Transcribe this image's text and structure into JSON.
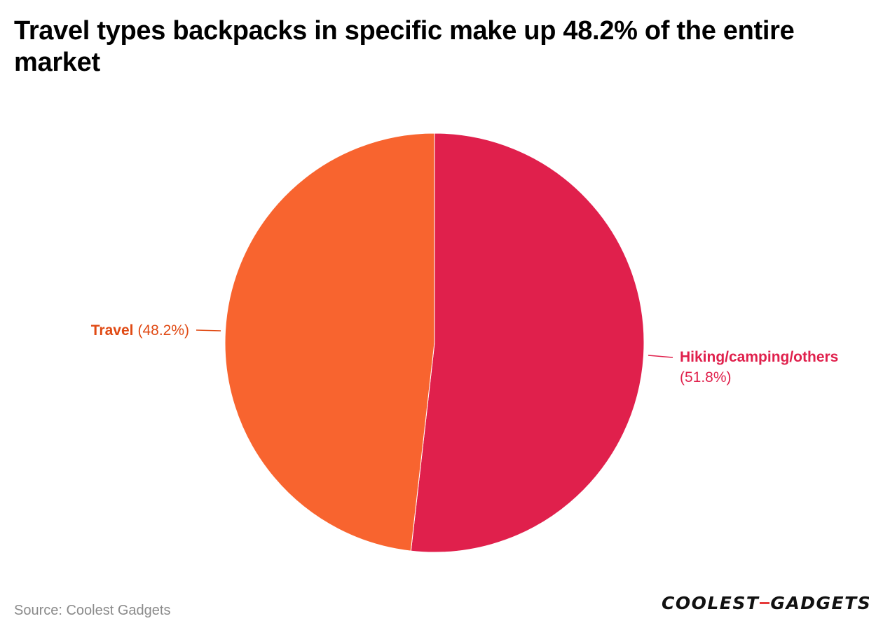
{
  "title": "Travel types backpacks in specific make up 48.2% of the entire market",
  "source": "Source: Coolest Gadgets",
  "logo": {
    "part1": "COOLEST",
    "part2": "GADGETS"
  },
  "colors": {
    "travel": "#f8642f",
    "hiking": "#e0204c",
    "travel_label": "#e04a14",
    "hiking_label": "#e0204c"
  },
  "chart_data": {
    "type": "pie",
    "title": "Travel types backpacks in specific make up 48.2% of the entire market",
    "start_angle": "12 o'clock, clockwise",
    "slices": [
      {
        "name": "Hiking/camping/others",
        "value": 51.8,
        "pct_label": "(51.8%)",
        "color": "#e0204c",
        "label_color": "#e0204c"
      },
      {
        "name": "Travel",
        "value": 48.2,
        "pct_label": "(48.2%)",
        "color": "#f8642f",
        "label_color": "#e04a14"
      }
    ]
  }
}
